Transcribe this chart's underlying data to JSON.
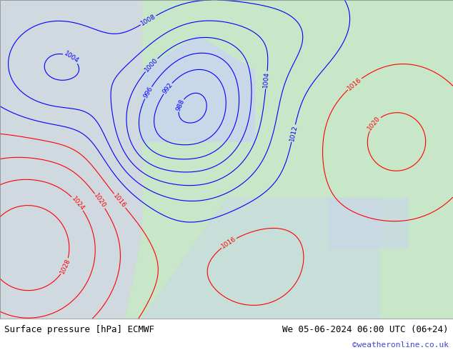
{
  "title_left": "Surface pressure [hPa] ECMWF",
  "title_right": "We 05-06-2024 06:00 UTC (06+24)",
  "copyright": "©weatheronline.co.uk",
  "bg_color": "#c8e6c8",
  "land_color": "#c8e6c8",
  "sea_color": "#d0e8f0",
  "fig_width": 6.34,
  "fig_height": 4.9,
  "dpi": 100
}
